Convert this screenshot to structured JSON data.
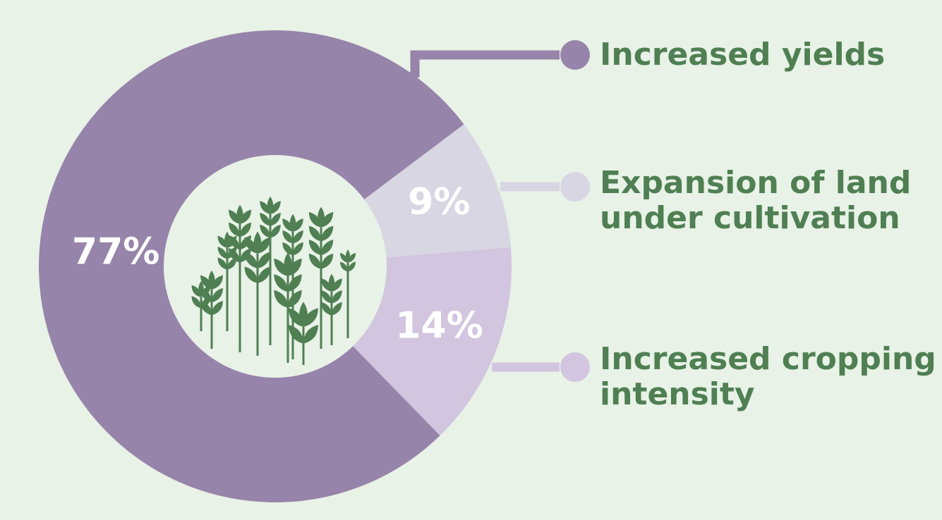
{
  "colors": {
    "background": "#e8f2e7",
    "legend_text": "#4f7f52",
    "icon": "#4f7f52",
    "hole": "#e8f2e7"
  },
  "center_icon": "wheat-plants-icon",
  "chart_data": {
    "type": "pie",
    "title": "",
    "donut": true,
    "start_angle_deg": 53,
    "direction": "clockwise",
    "legend_position": "right",
    "slices": [
      {
        "label": [
          "Expansion of land",
          "under cultivation"
        ],
        "value": 9,
        "display": "9%",
        "color": "#d9d6e3"
      },
      {
        "label": [
          "Increased cropping",
          "intensity"
        ],
        "value": 14,
        "display": "14%",
        "color": "#d2c5df"
      },
      {
        "label": [
          "Increased yields"
        ],
        "value": 77,
        "display": "77%",
        "color": "#9784aa"
      }
    ]
  }
}
